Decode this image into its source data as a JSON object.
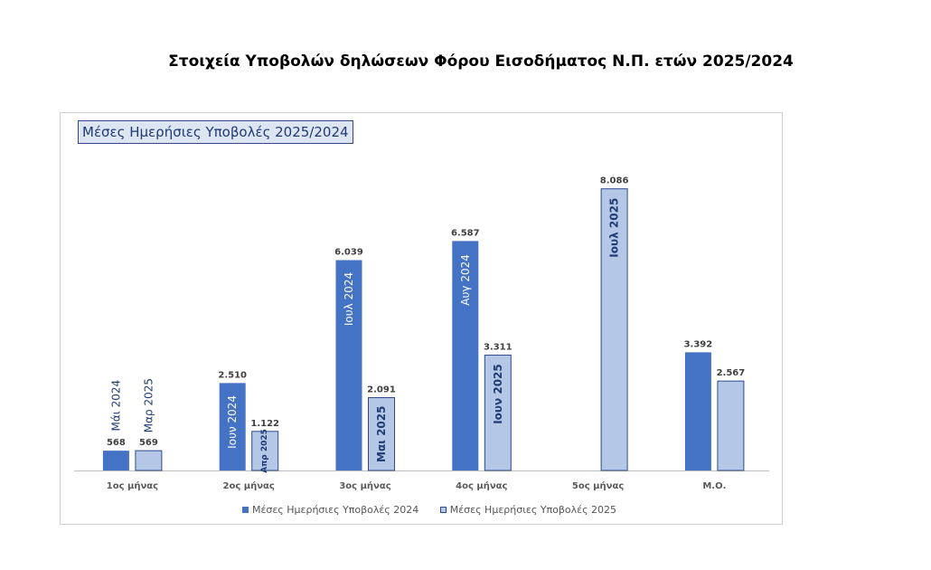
{
  "page": {
    "title": "Στοιχεία Υποβολών δηλώσεων Φόρου Εισοδήματος Ν.Π. ετών 2025/2024"
  },
  "colors": {
    "series_2024": "#4472c4",
    "series_2025": "#b4c7e7",
    "series_2025_border": "#2f4a8a",
    "axis": "#bfbfbf",
    "value_label": "#404040",
    "inner_text_2024": "#ffffff",
    "inner_text_2025": "#1f3b73",
    "outer_text": "#1f3b73"
  },
  "chart_data": {
    "type": "bar",
    "title": "Μέσες Ημερήσιες Υποβολές 2025/2024",
    "categories": [
      "1ος μήνας",
      "2ος μήνας",
      "3ος μήνας",
      "4ος μήνας",
      "5ος μήνας",
      "Μ.Ο."
    ],
    "series": [
      {
        "name": "Μέσες Ημερήσιες Υποβολές 2024",
        "values": [
          568,
          2510,
          6039,
          6587,
          null,
          3392
        ],
        "value_labels": [
          "568",
          "2.510",
          "6.039",
          "6.587",
          "",
          "3.392"
        ],
        "month_labels": [
          "Μάι 2024",
          "Ιουν 2024",
          "Ιουλ 2024",
          "Αυγ 2024",
          "",
          ""
        ]
      },
      {
        "name": "Μέσες Ημερήσιες Υποβολές 2025",
        "values": [
          569,
          1122,
          2091,
          3311,
          8086,
          2567
        ],
        "value_labels": [
          "569",
          "1.122",
          "2.091",
          "3.311",
          "8.086",
          "2.567"
        ],
        "month_labels": [
          "Μαρ 2025",
          "Απρ 2025",
          "Μαι 2025",
          "Ιουν 2025",
          "Ιουλ 2025",
          ""
        ]
      }
    ],
    "ylim": [
      0,
      9000
    ],
    "y_axis_visible": false,
    "grid": false,
    "legend_position": "bottom"
  }
}
